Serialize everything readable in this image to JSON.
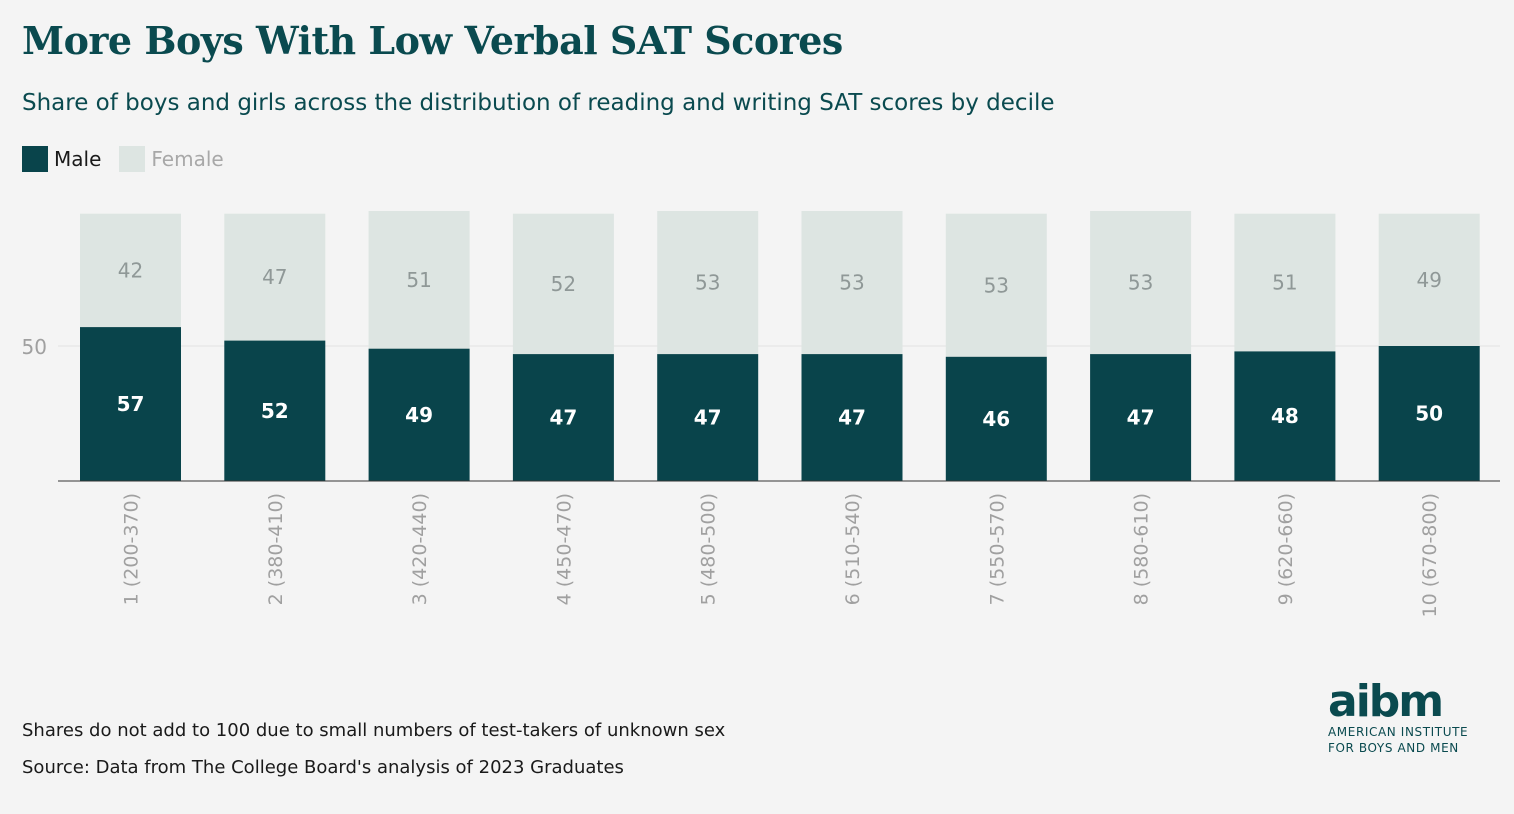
{
  "title": "More Boys With Low Verbal SAT Scores",
  "subtitle": "Share of boys and girls across the distribution of reading and writing SAT scores by decile",
  "legend": {
    "male_label": "Male",
    "female_label": "Female"
  },
  "colors": {
    "male": "#09444b",
    "female": "#dde5e2",
    "female_text": "#8f9897",
    "male_text": "#ffffff",
    "axis_text": "#a0a0a0",
    "title": "#0a4a4f"
  },
  "chart_data": {
    "type": "bar",
    "stacked": true,
    "categories": [
      "1 (200-370)",
      "2 (380-410)",
      "3 (420-440)",
      "4 (450-470)",
      "5 (480-500)",
      "6 (510-540)",
      "7 (550-570)",
      "8 (580-610)",
      "9 (620-660)",
      "10 (670-800)"
    ],
    "series": [
      {
        "name": "Male",
        "values": [
          57,
          52,
          49,
          47,
          47,
          47,
          46,
          47,
          48,
          50
        ]
      },
      {
        "name": "Female",
        "values": [
          42,
          47,
          51,
          52,
          53,
          53,
          53,
          53,
          51,
          49
        ]
      }
    ],
    "yticks": [
      50
    ],
    "ylim": [
      0,
      100
    ],
    "title": "More Boys With Low Verbal SAT Scores",
    "subtitle": "Share of boys and girls across the distribution of reading and writing SAT scores by decile",
    "legend_position": "top-left",
    "grid": true
  },
  "notes": {
    "footnote": "Shares do not add to 100 due to small numbers of test-takers of unknown sex",
    "source": "Source: Data from The College Board's analysis of 2023 Graduates"
  },
  "logo": {
    "mark": "aibm",
    "line1": "AMERICAN INSTITUTE",
    "line2": "FOR BOYS AND MEN"
  }
}
